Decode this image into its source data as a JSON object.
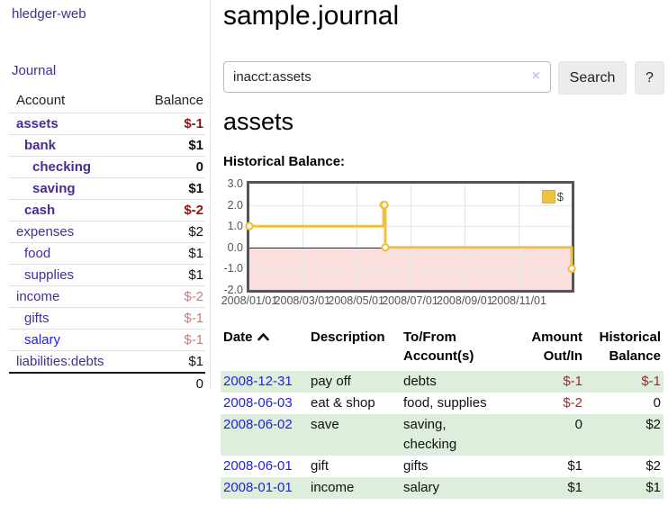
{
  "app": {
    "title": "hledger-web"
  },
  "sidebar": {
    "journal_label": "Journal",
    "accounts": {
      "header_account": "Account",
      "header_balance": "Balance",
      "rows": [
        {
          "name": "assets",
          "depth": 1,
          "balance": "$-1",
          "matched": true,
          "link_style": "purple"
        },
        {
          "name": "bank",
          "depth": 2,
          "balance": "$1",
          "matched": true,
          "link_style": "purple"
        },
        {
          "name": "checking",
          "depth": 3,
          "balance": "0",
          "matched": true,
          "link_style": "purple"
        },
        {
          "name": "saving",
          "depth": 3,
          "balance": "$1",
          "matched": true,
          "link_style": "purple"
        },
        {
          "name": "cash",
          "depth": 2,
          "balance": "$-2",
          "matched": true,
          "link_style": "purple"
        },
        {
          "name": "expenses",
          "depth": 1,
          "balance": "$2",
          "matched": false,
          "link_style": "purple"
        },
        {
          "name": "food",
          "depth": 2,
          "balance": "$1",
          "matched": false,
          "link_style": "purple"
        },
        {
          "name": "supplies",
          "depth": 2,
          "balance": "$1",
          "matched": false,
          "link_style": "purple"
        },
        {
          "name": "income",
          "depth": 1,
          "balance": "$-2",
          "matched": false,
          "link_style": "purple"
        },
        {
          "name": "gifts",
          "depth": 2,
          "balance": "$-1",
          "matched": false,
          "link_style": "purple"
        },
        {
          "name": "salary",
          "depth": 2,
          "balance": "$-1",
          "matched": false,
          "link_style": "blue"
        },
        {
          "name": "liabilities:debts",
          "depth": 1,
          "balance": "$1",
          "matched": false,
          "link_style": "purple"
        }
      ],
      "total": "0"
    }
  },
  "main": {
    "title": "sample.journal",
    "search": {
      "value": "inacct:assets",
      "clear_glyph": "×",
      "button_label": "Search",
      "help_label": "?"
    },
    "account_heading": "assets",
    "chart_label": "Historical Balance:"
  },
  "chart_data": {
    "type": "line",
    "step": true,
    "title": "Historical Balance",
    "legend": "$",
    "legend_position": "top-right",
    "line_color": "#EDC240",
    "negative_fill": "#fbdede",
    "zero_line_color": "#8b0000",
    "x_range": [
      "2008-01-01",
      "2008-12-31"
    ],
    "ylim": [
      -2,
      3
    ],
    "y_ticks": [
      "3.0",
      "2.0",
      "1.0",
      "0.0",
      "-1.0",
      "-2.0"
    ],
    "x_ticks": [
      [
        "2008-01-01",
        "2008/01/01"
      ],
      [
        "2008-03-01",
        "2008/03/01"
      ],
      [
        "2008-05-01",
        "2008/05/01"
      ],
      [
        "2008-07-01",
        "2008/07/01"
      ],
      [
        "2008-09-01",
        "2008/09/01"
      ],
      [
        "2008-11-01",
        "2008/11/01"
      ]
    ],
    "series": [
      {
        "name": "$",
        "points": [
          [
            "2008-01-01",
            1
          ],
          [
            "2008-06-01",
            2
          ],
          [
            "2008-06-02",
            2
          ],
          [
            "2008-06-03",
            0
          ],
          [
            "2008-12-31",
            -1
          ]
        ]
      }
    ]
  },
  "register": {
    "headers": {
      "date": "Date",
      "description": "Description",
      "tofrom": [
        "To/From",
        "Account(s)"
      ],
      "amount": [
        "Amount",
        "Out/In"
      ],
      "balance": [
        "Historical",
        "Balance"
      ]
    },
    "rows": [
      {
        "date": "2008-12-31",
        "description": "pay off",
        "accounts": "debts",
        "amount": "$-1",
        "balance": "$-1"
      },
      {
        "date": "2008-06-03",
        "description": "eat & shop",
        "accounts": "food, supplies",
        "amount": "$-2",
        "balance": "0"
      },
      {
        "date": "2008-06-02",
        "description": "save",
        "accounts": "saving, checking",
        "amount": "0",
        "balance": "$2"
      },
      {
        "date": "2008-06-01",
        "description": "gift",
        "accounts": "gifts",
        "amount": "$1",
        "balance": "$2"
      },
      {
        "date": "2008-01-01",
        "description": "income",
        "accounts": "salary",
        "amount": "$1",
        "balance": "$1"
      }
    ]
  }
}
